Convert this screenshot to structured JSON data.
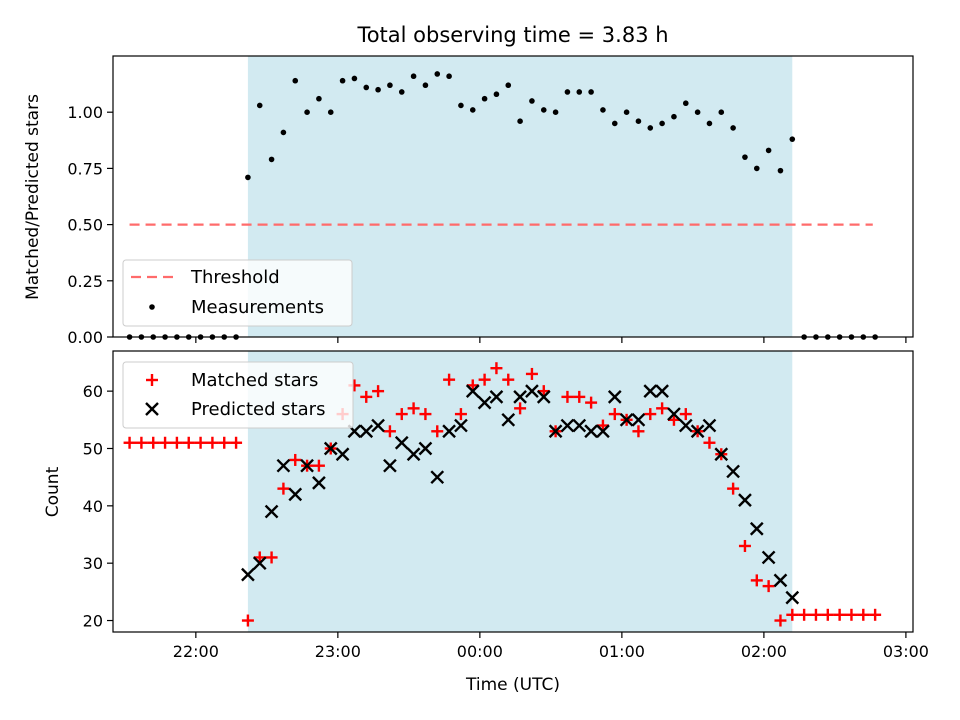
{
  "chart_data": [
    {
      "type": "scatter",
      "title": "Total observing time = 3.83 h",
      "xlabel": "",
      "ylabel": "Matched/Predicted stars",
      "ylim": [
        0,
        1.25
      ],
      "yticks": [
        "0.00",
        "0.25",
        "0.50",
        "0.75",
        "1.00"
      ],
      "yticks_values": [
        0,
        0.25,
        0.5,
        0.75,
        1.0
      ],
      "xlim_utc": [
        "21:25",
        "03:03"
      ],
      "shaded_span_utc": [
        "22:22",
        "02:12"
      ],
      "shaded_color": "#add8e6",
      "legend_position": "lower left",
      "threshold": {
        "name": "Threshold",
        "y": 0.5,
        "x_start": "21:32",
        "x_end": "02:46",
        "color": "#ff6b6b"
      },
      "series": [
        {
          "name": "Measurements",
          "color": "#000000",
          "points": [
            [
              "21:32",
              0.0
            ],
            [
              "21:37",
              0.0
            ],
            [
              "21:42",
              0.0
            ],
            [
              "21:47",
              0.0
            ],
            [
              "21:52",
              0.0
            ],
            [
              "21:57",
              0.0
            ],
            [
              "22:02",
              0.0
            ],
            [
              "22:07",
              0.0
            ],
            [
              "22:12",
              0.0
            ],
            [
              "22:17",
              0.0
            ],
            [
              "22:22",
              0.71
            ],
            [
              "22:27",
              1.03
            ],
            [
              "22:32",
              0.79
            ],
            [
              "22:37",
              0.91
            ],
            [
              "22:42",
              1.14
            ],
            [
              "22:47",
              1.0
            ],
            [
              "22:52",
              1.06
            ],
            [
              "22:57",
              1.0
            ],
            [
              "23:02",
              1.14
            ],
            [
              "23:07",
              1.15
            ],
            [
              "23:12",
              1.11
            ],
            [
              "23:17",
              1.1
            ],
            [
              "23:22",
              1.12
            ],
            [
              "23:27",
              1.09
            ],
            [
              "23:32",
              1.16
            ],
            [
              "23:37",
              1.12
            ],
            [
              "23:42",
              1.17
            ],
            [
              "23:47",
              1.16
            ],
            [
              "23:52",
              1.03
            ],
            [
              "23:57",
              1.01
            ],
            [
              "00:02",
              1.06
            ],
            [
              "00:07",
              1.08
            ],
            [
              "00:12",
              1.12
            ],
            [
              "00:17",
              0.96
            ],
            [
              "00:22",
              1.05
            ],
            [
              "00:27",
              1.01
            ],
            [
              "00:32",
              1.0
            ],
            [
              "00:37",
              1.09
            ],
            [
              "00:42",
              1.09
            ],
            [
              "00:47",
              1.09
            ],
            [
              "00:52",
              1.01
            ],
            [
              "00:57",
              0.95
            ],
            [
              "01:02",
              1.0
            ],
            [
              "01:07",
              0.96
            ],
            [
              "01:12",
              0.93
            ],
            [
              "01:17",
              0.95
            ],
            [
              "01:22",
              0.98
            ],
            [
              "01:27",
              1.04
            ],
            [
              "01:32",
              1.0
            ],
            [
              "01:37",
              0.95
            ],
            [
              "01:42",
              1.0
            ],
            [
              "01:47",
              0.93
            ],
            [
              "01:52",
              0.8
            ],
            [
              "01:57",
              0.75
            ],
            [
              "02:02",
              0.83
            ],
            [
              "02:07",
              0.74
            ],
            [
              "02:12",
              0.88
            ],
            [
              "02:17",
              0.0
            ],
            [
              "02:22",
              0.0
            ],
            [
              "02:27",
              0.0
            ],
            [
              "02:32",
              0.0
            ],
            [
              "02:37",
              0.0
            ],
            [
              "02:42",
              0.0
            ],
            [
              "02:47",
              0.0
            ]
          ]
        }
      ]
    },
    {
      "type": "scatter",
      "title": "",
      "xlabel": "Time (UTC)",
      "ylabel": "Count",
      "ylim": [
        18,
        67
      ],
      "yticks": [
        "20",
        "30",
        "40",
        "50",
        "60"
      ],
      "yticks_values": [
        20,
        30,
        40,
        50,
        60
      ],
      "xticks": [
        "22:00",
        "23:00",
        "00:00",
        "01:00",
        "02:00",
        "03:00"
      ],
      "xticks_utc": [
        "22:00",
        "23:00",
        "00:00",
        "01:00",
        "02:00",
        "03:00"
      ],
      "xlim_utc": [
        "21:25",
        "03:03"
      ],
      "shaded_span_utc": [
        "22:22",
        "02:12"
      ],
      "shaded_color": "#add8e6",
      "legend_position": "upper left",
      "series": [
        {
          "name": "Matched stars",
          "marker": "+",
          "color": "#ff0000",
          "points": [
            [
              "21:32",
              51
            ],
            [
              "21:37",
              51
            ],
            [
              "21:42",
              51
            ],
            [
              "21:47",
              51
            ],
            [
              "21:52",
              51
            ],
            [
              "21:57",
              51
            ],
            [
              "22:02",
              51
            ],
            [
              "22:07",
              51
            ],
            [
              "22:12",
              51
            ],
            [
              "22:17",
              51
            ],
            [
              "22:22",
              20
            ],
            [
              "22:27",
              31
            ],
            [
              "22:32",
              31
            ],
            [
              "22:37",
              43
            ],
            [
              "22:42",
              48
            ],
            [
              "22:47",
              47
            ],
            [
              "22:52",
              47
            ],
            [
              "22:57",
              50
            ],
            [
              "23:02",
              56
            ],
            [
              "23:07",
              61
            ],
            [
              "23:12",
              59
            ],
            [
              "23:17",
              60
            ],
            [
              "23:22",
              53
            ],
            [
              "23:27",
              56
            ],
            [
              "23:32",
              57
            ],
            [
              "23:37",
              56
            ],
            [
              "23:42",
              53
            ],
            [
              "23:47",
              62
            ],
            [
              "23:52",
              56
            ],
            [
              "23:57",
              61
            ],
            [
              "00:02",
              62
            ],
            [
              "00:07",
              64
            ],
            [
              "00:12",
              62
            ],
            [
              "00:17",
              57
            ],
            [
              "00:22",
              63
            ],
            [
              "00:27",
              60
            ],
            [
              "00:32",
              53
            ],
            [
              "00:37",
              59
            ],
            [
              "00:42",
              59
            ],
            [
              "00:47",
              58
            ],
            [
              "00:52",
              54
            ],
            [
              "00:57",
              56
            ],
            [
              "01:02",
              55
            ],
            [
              "01:07",
              53
            ],
            [
              "01:12",
              56
            ],
            [
              "01:17",
              57
            ],
            [
              "01:22",
              55
            ],
            [
              "01:27",
              56
            ],
            [
              "01:32",
              53
            ],
            [
              "01:37",
              51
            ],
            [
              "01:42",
              49
            ],
            [
              "01:47",
              43
            ],
            [
              "01:52",
              33
            ],
            [
              "01:57",
              27
            ],
            [
              "02:02",
              26
            ],
            [
              "02:07",
              20
            ],
            [
              "02:12",
              21
            ],
            [
              "02:17",
              21
            ],
            [
              "02:22",
              21
            ],
            [
              "02:27",
              21
            ],
            [
              "02:32",
              21
            ],
            [
              "02:37",
              21
            ],
            [
              "02:42",
              21
            ],
            [
              "02:47",
              21
            ]
          ]
        },
        {
          "name": "Predicted stars",
          "marker": "x",
          "color": "#000000",
          "points": [
            [
              "22:22",
              28
            ],
            [
              "22:27",
              30
            ],
            [
              "22:32",
              39
            ],
            [
              "22:37",
              47
            ],
            [
              "22:42",
              42
            ],
            [
              "22:47",
              47
            ],
            [
              "22:52",
              44
            ],
            [
              "22:57",
              50
            ],
            [
              "23:02",
              49
            ],
            [
              "23:07",
              53
            ],
            [
              "23:12",
              53
            ],
            [
              "23:17",
              54
            ],
            [
              "23:22",
              47
            ],
            [
              "23:27",
              51
            ],
            [
              "23:32",
              49
            ],
            [
              "23:37",
              50
            ],
            [
              "23:42",
              45
            ],
            [
              "23:47",
              53
            ],
            [
              "23:52",
              54
            ],
            [
              "23:57",
              60
            ],
            [
              "00:02",
              58
            ],
            [
              "00:07",
              59
            ],
            [
              "00:12",
              55
            ],
            [
              "00:17",
              59
            ],
            [
              "00:22",
              60
            ],
            [
              "00:27",
              59
            ],
            [
              "00:32",
              53
            ],
            [
              "00:37",
              54
            ],
            [
              "00:42",
              54
            ],
            [
              "00:47",
              53
            ],
            [
              "00:52",
              53
            ],
            [
              "00:57",
              59
            ],
            [
              "01:02",
              55
            ],
            [
              "01:07",
              55
            ],
            [
              "01:12",
              60
            ],
            [
              "01:17",
              60
            ],
            [
              "01:22",
              56
            ],
            [
              "01:27",
              54
            ],
            [
              "01:32",
              53
            ],
            [
              "01:37",
              54
            ],
            [
              "01:42",
              49
            ],
            [
              "01:47",
              46
            ],
            [
              "01:52",
              41
            ],
            [
              "01:57",
              36
            ],
            [
              "02:02",
              31
            ],
            [
              "02:07",
              27
            ],
            [
              "02:12",
              24
            ]
          ]
        }
      ]
    }
  ]
}
